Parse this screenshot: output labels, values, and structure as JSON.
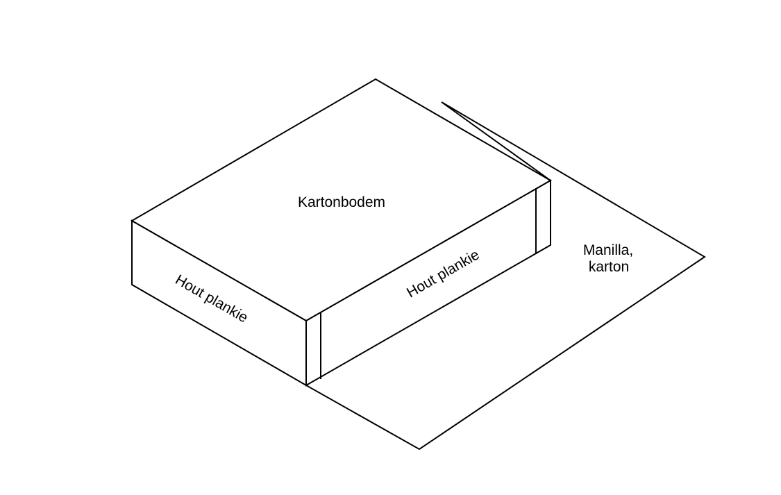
{
  "diagram": {
    "labels": {
      "top": "Kartonbodem",
      "left_side": "Hout plankie",
      "right_side": "Hout plankie",
      "sheet": [
        "Manilla,",
        "karton"
      ]
    },
    "colors": {
      "stroke": "#000000",
      "background": "#ffffff"
    }
  }
}
